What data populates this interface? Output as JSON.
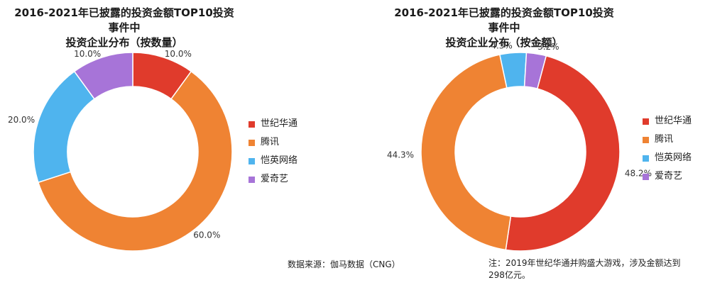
{
  "chart_data": [
    {
      "type": "pie",
      "title": "2016-2021年已披露的投资金额TOP10投资事件中投资企业分布（按数量）",
      "title_lines": [
        "2016-2021年已披露的投资金额TOP10投资事件中",
        "投资企业分布（按数量）"
      ],
      "categories": [
        "世纪华通",
        "腾讯",
        "恺英网络",
        "爱奇艺"
      ],
      "values": [
        10.0,
        60.0,
        20.0,
        10.0
      ],
      "labels": [
        "10.0%",
        "60.0%",
        "20.0%",
        "10.0%"
      ],
      "colors": [
        "#e03b2c",
        "#ef8333",
        "#4fb4ee",
        "#a774d8"
      ],
      "legend_position": "right"
    },
    {
      "type": "pie",
      "title": "2016-2021年已披露的投资金额TOP10投资事件中投资企业分布（按金额）",
      "title_lines": [
        "2016-2021年已披露的投资金额TOP10投资事件中",
        "投资企业分布（按金额）"
      ],
      "categories": [
        "世纪华通",
        "腾讯",
        "恺英网络",
        "爱奇艺"
      ],
      "values": [
        48.2,
        44.3,
        4.3,
        3.2
      ],
      "labels": [
        "48.2%",
        "44.3%",
        "4.3%",
        "3.2%"
      ],
      "colors": [
        "#e03b2c",
        "#ef8333",
        "#4fb4ee",
        "#a774d8"
      ],
      "legend_position": "right"
    }
  ],
  "footer": {
    "source": "数据来源：伽马数据（CNG）",
    "note": "注：2019年世纪华通并购盛大游戏，涉及金额达到298亿元。"
  }
}
